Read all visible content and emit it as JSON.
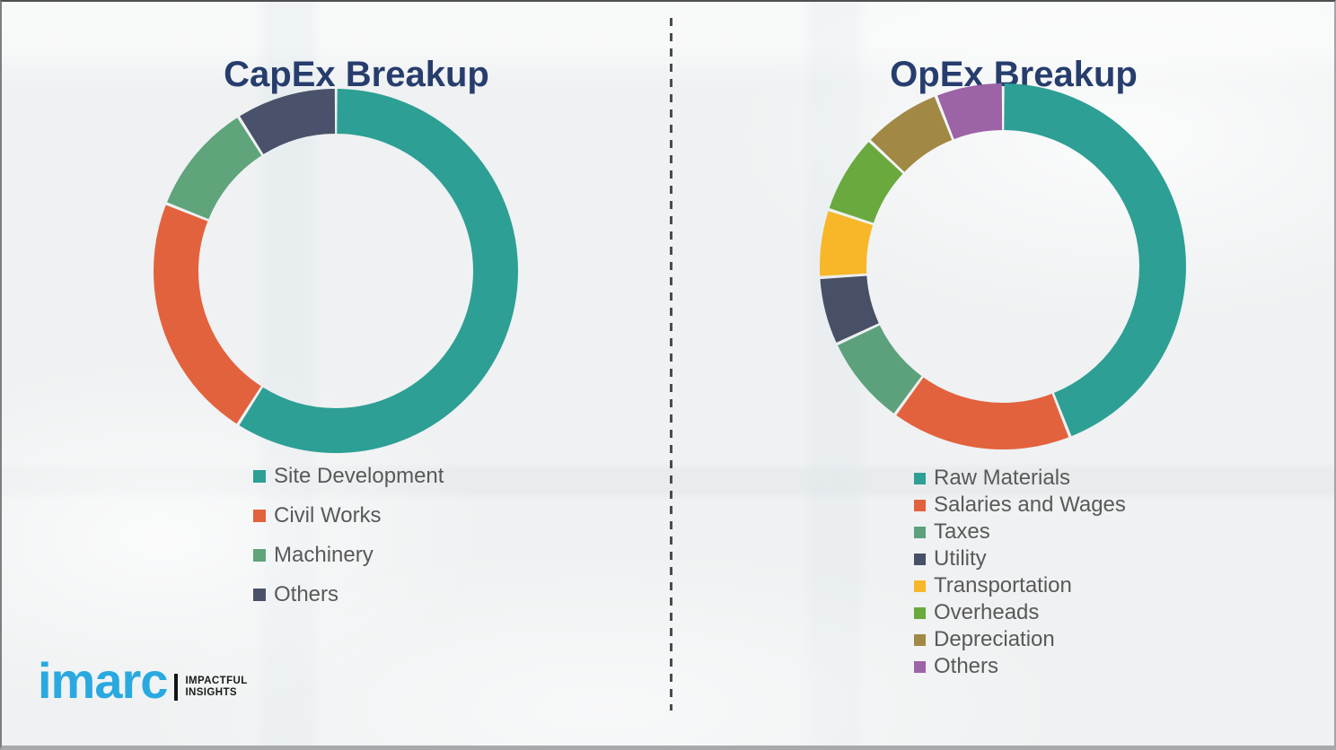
{
  "titles": {
    "capex": "CapEx Breakup",
    "opex": "OpEx Breakup"
  },
  "chart_data": [
    {
      "type": "pie",
      "variant": "donut",
      "title": "CapEx Breakup",
      "labels": [
        "Site Development",
        "Civil Works",
        "Machinery",
        "Others"
      ],
      "values": [
        59,
        22,
        10,
        9
      ],
      "values_note": "percent, estimated from arc angles (no numeric labels shown)",
      "colors": [
        "#2D9F95",
        "#E2623E",
        "#5FA47B",
        "#4A526B"
      ],
      "start_angle_deg": 0,
      "direction": "clockwise",
      "legend_position": "below-left"
    },
    {
      "type": "pie",
      "variant": "donut",
      "title": "OpEx Breakup",
      "labels": [
        "Raw Materials",
        "Salaries and Wages",
        "Taxes",
        "Utility",
        "Transportation",
        "Overheads",
        "Depreciation",
        "Others"
      ],
      "values": [
        44,
        16,
        8,
        6,
        6,
        7,
        7,
        6
      ],
      "values_note": "percent, estimated from arc angles (no numeric labels shown)",
      "colors": [
        "#2D9F95",
        "#E2623E",
        "#5CA17C",
        "#475066",
        "#F7B729",
        "#69A93E",
        "#A18945",
        "#9C63A6"
      ],
      "start_angle_deg": 0,
      "direction": "clockwise",
      "legend_position": "below-left"
    }
  ],
  "logo": {
    "brand": "imarc",
    "brand_color": "#29A9E0",
    "tagline_line1": "IMPACTFUL",
    "tagline_line2": "INSIGHTS"
  },
  "colors": {
    "title_text": "#263D6D",
    "legend_text": "#595959",
    "background": "#EFF1F2",
    "divider": "#4A4B4D"
  }
}
